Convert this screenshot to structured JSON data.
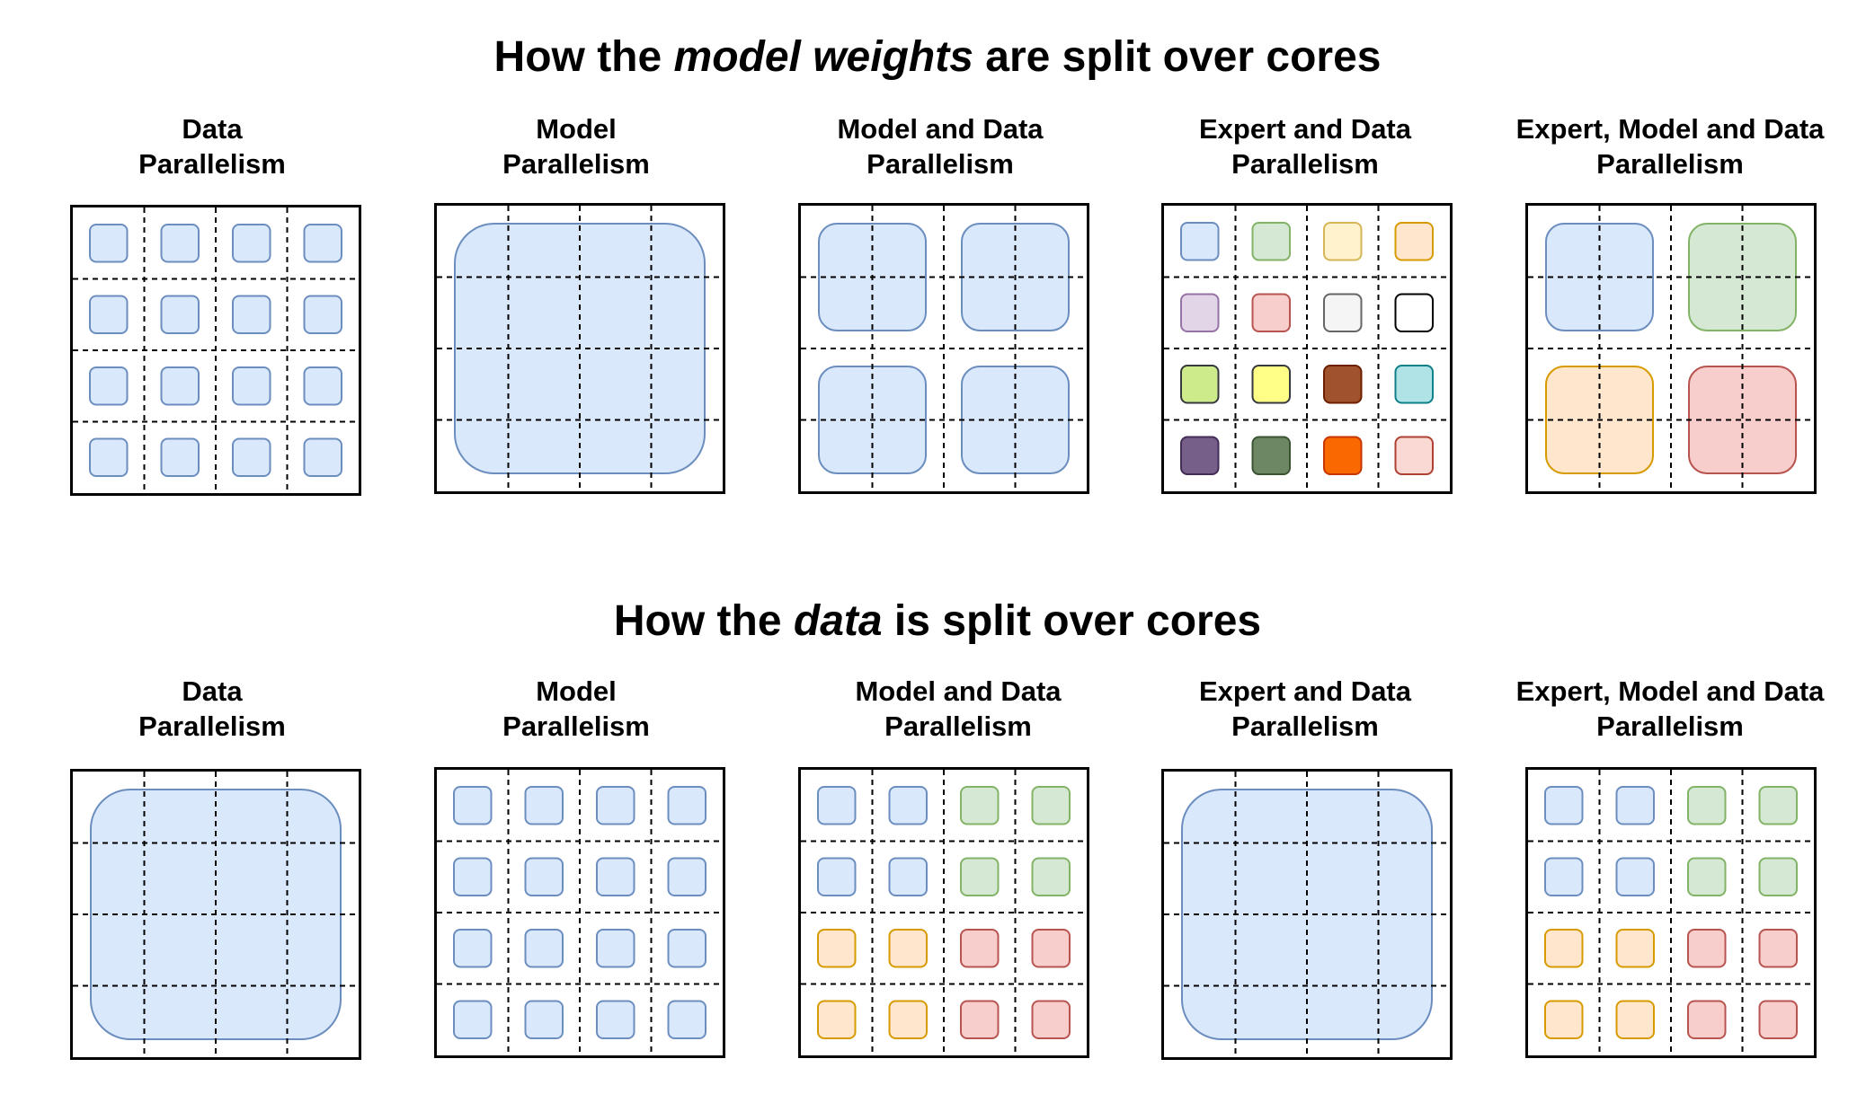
{
  "colors": {
    "blue": {
      "fill": "#dae8fc",
      "stroke": "#6c8ebf"
    },
    "green": {
      "fill": "#d5e8d4",
      "stroke": "#82b366"
    },
    "yellow_light": {
      "fill": "#fff2cc",
      "stroke": "#d6b656"
    },
    "orange": {
      "fill": "#ffe6cc",
      "stroke": "#d79b00"
    },
    "purple": {
      "fill": "#e1d5e7",
      "stroke": "#9673a6"
    },
    "red": {
      "fill": "#f8cecc",
      "stroke": "#b85450"
    },
    "gray": {
      "fill": "#f5f5f5",
      "stroke": "#666666"
    },
    "white": {
      "fill": "#ffffff",
      "stroke": "#000000"
    },
    "lime": {
      "fill": "#cdeb8b",
      "stroke": "#36393d"
    },
    "yellow": {
      "fill": "#ffff88",
      "stroke": "#36393d"
    },
    "brown": {
      "fill": "#a0522d",
      "stroke": "#6d1f00"
    },
    "teal": {
      "fill": "#b0e3e6",
      "stroke": "#0e8088"
    },
    "dark_purple": {
      "fill": "#76608a",
      "stroke": "#432d57"
    },
    "dark_green": {
      "fill": "#6d8764",
      "stroke": "#3a5431"
    },
    "bright_orange": {
      "fill": "#fa6800",
      "stroke": "#c73500"
    },
    "pink": {
      "fill": "#fad9d5",
      "stroke": "#ae4132"
    }
  },
  "sections": [
    {
      "title_before": "How the ",
      "title_em": "model weights",
      "title_after": " are split over cores",
      "panels": [
        {
          "label_line1": "Data",
          "label_line2": "Parallelism",
          "blocks": [
            {
              "r": 0,
              "c": 0,
              "w": 1,
              "h": 1,
              "color": "blue"
            },
            {
              "r": 0,
              "c": 1,
              "w": 1,
              "h": 1,
              "color": "blue"
            },
            {
              "r": 0,
              "c": 2,
              "w": 1,
              "h": 1,
              "color": "blue"
            },
            {
              "r": 0,
              "c": 3,
              "w": 1,
              "h": 1,
              "color": "blue"
            },
            {
              "r": 1,
              "c": 0,
              "w": 1,
              "h": 1,
              "color": "blue"
            },
            {
              "r": 1,
              "c": 1,
              "w": 1,
              "h": 1,
              "color": "blue"
            },
            {
              "r": 1,
              "c": 2,
              "w": 1,
              "h": 1,
              "color": "blue"
            },
            {
              "r": 1,
              "c": 3,
              "w": 1,
              "h": 1,
              "color": "blue"
            },
            {
              "r": 2,
              "c": 0,
              "w": 1,
              "h": 1,
              "color": "blue"
            },
            {
              "r": 2,
              "c": 1,
              "w": 1,
              "h": 1,
              "color": "blue"
            },
            {
              "r": 2,
              "c": 2,
              "w": 1,
              "h": 1,
              "color": "blue"
            },
            {
              "r": 2,
              "c": 3,
              "w": 1,
              "h": 1,
              "color": "blue"
            },
            {
              "r": 3,
              "c": 0,
              "w": 1,
              "h": 1,
              "color": "blue"
            },
            {
              "r": 3,
              "c": 1,
              "w": 1,
              "h": 1,
              "color": "blue"
            },
            {
              "r": 3,
              "c": 2,
              "w": 1,
              "h": 1,
              "color": "blue"
            },
            {
              "r": 3,
              "c": 3,
              "w": 1,
              "h": 1,
              "color": "blue"
            }
          ]
        },
        {
          "label_line1": "Model",
          "label_line2": "Parallelism",
          "blocks": [
            {
              "r": 0,
              "c": 0,
              "w": 4,
              "h": 4,
              "color": "blue"
            }
          ]
        },
        {
          "label_line1": "Model and Data",
          "label_line2": "Parallelism",
          "blocks": [
            {
              "r": 0,
              "c": 0,
              "w": 2,
              "h": 2,
              "color": "blue"
            },
            {
              "r": 0,
              "c": 2,
              "w": 2,
              "h": 2,
              "color": "blue"
            },
            {
              "r": 2,
              "c": 0,
              "w": 2,
              "h": 2,
              "color": "blue"
            },
            {
              "r": 2,
              "c": 2,
              "w": 2,
              "h": 2,
              "color": "blue"
            }
          ]
        },
        {
          "label_line1": "Expert and Data",
          "label_line2": "Parallelism",
          "blocks": [
            {
              "r": 0,
              "c": 0,
              "w": 1,
              "h": 1,
              "color": "blue"
            },
            {
              "r": 0,
              "c": 1,
              "w": 1,
              "h": 1,
              "color": "green"
            },
            {
              "r": 0,
              "c": 2,
              "w": 1,
              "h": 1,
              "color": "yellow_light"
            },
            {
              "r": 0,
              "c": 3,
              "w": 1,
              "h": 1,
              "color": "orange"
            },
            {
              "r": 1,
              "c": 0,
              "w": 1,
              "h": 1,
              "color": "purple"
            },
            {
              "r": 1,
              "c": 1,
              "w": 1,
              "h": 1,
              "color": "red"
            },
            {
              "r": 1,
              "c": 2,
              "w": 1,
              "h": 1,
              "color": "gray"
            },
            {
              "r": 1,
              "c": 3,
              "w": 1,
              "h": 1,
              "color": "white"
            },
            {
              "r": 2,
              "c": 0,
              "w": 1,
              "h": 1,
              "color": "lime"
            },
            {
              "r": 2,
              "c": 1,
              "w": 1,
              "h": 1,
              "color": "yellow"
            },
            {
              "r": 2,
              "c": 2,
              "w": 1,
              "h": 1,
              "color": "brown"
            },
            {
              "r": 2,
              "c": 3,
              "w": 1,
              "h": 1,
              "color": "teal"
            },
            {
              "r": 3,
              "c": 0,
              "w": 1,
              "h": 1,
              "color": "dark_purple"
            },
            {
              "r": 3,
              "c": 1,
              "w": 1,
              "h": 1,
              "color": "dark_green"
            },
            {
              "r": 3,
              "c": 2,
              "w": 1,
              "h": 1,
              "color": "bright_orange"
            },
            {
              "r": 3,
              "c": 3,
              "w": 1,
              "h": 1,
              "color": "pink"
            }
          ]
        },
        {
          "label_line1": "Expert, Model and Data",
          "label_line2": "Parallelism",
          "blocks": [
            {
              "r": 0,
              "c": 0,
              "w": 2,
              "h": 2,
              "color": "blue"
            },
            {
              "r": 0,
              "c": 2,
              "w": 2,
              "h": 2,
              "color": "green"
            },
            {
              "r": 2,
              "c": 0,
              "w": 2,
              "h": 2,
              "color": "orange"
            },
            {
              "r": 2,
              "c": 2,
              "w": 2,
              "h": 2,
              "color": "red"
            }
          ]
        }
      ]
    },
    {
      "title_before": "How the ",
      "title_em": "data",
      "title_after": " is split over cores",
      "panels": [
        {
          "label_line1": "Data",
          "label_line2": "Parallelism",
          "blocks": [
            {
              "r": 0,
              "c": 0,
              "w": 4,
              "h": 4,
              "color": "blue"
            }
          ]
        },
        {
          "label_line1": "Model",
          "label_line2": "Parallelism",
          "blocks": [
            {
              "r": 0,
              "c": 0,
              "w": 1,
              "h": 1,
              "color": "blue"
            },
            {
              "r": 0,
              "c": 1,
              "w": 1,
              "h": 1,
              "color": "blue"
            },
            {
              "r": 0,
              "c": 2,
              "w": 1,
              "h": 1,
              "color": "blue"
            },
            {
              "r": 0,
              "c": 3,
              "w": 1,
              "h": 1,
              "color": "blue"
            },
            {
              "r": 1,
              "c": 0,
              "w": 1,
              "h": 1,
              "color": "blue"
            },
            {
              "r": 1,
              "c": 1,
              "w": 1,
              "h": 1,
              "color": "blue"
            },
            {
              "r": 1,
              "c": 2,
              "w": 1,
              "h": 1,
              "color": "blue"
            },
            {
              "r": 1,
              "c": 3,
              "w": 1,
              "h": 1,
              "color": "blue"
            },
            {
              "r": 2,
              "c": 0,
              "w": 1,
              "h": 1,
              "color": "blue"
            },
            {
              "r": 2,
              "c": 1,
              "w": 1,
              "h": 1,
              "color": "blue"
            },
            {
              "r": 2,
              "c": 2,
              "w": 1,
              "h": 1,
              "color": "blue"
            },
            {
              "r": 2,
              "c": 3,
              "w": 1,
              "h": 1,
              "color": "blue"
            },
            {
              "r": 3,
              "c": 0,
              "w": 1,
              "h": 1,
              "color": "blue"
            },
            {
              "r": 3,
              "c": 1,
              "w": 1,
              "h": 1,
              "color": "blue"
            },
            {
              "r": 3,
              "c": 2,
              "w": 1,
              "h": 1,
              "color": "blue"
            },
            {
              "r": 3,
              "c": 3,
              "w": 1,
              "h": 1,
              "color": "blue"
            }
          ]
        },
        {
          "label_line1": "Model and Data",
          "label_line2": "Parallelism",
          "blocks": [
            {
              "r": 0,
              "c": 0,
              "w": 1,
              "h": 1,
              "color": "blue"
            },
            {
              "r": 0,
              "c": 1,
              "w": 1,
              "h": 1,
              "color": "blue"
            },
            {
              "r": 0,
              "c": 2,
              "w": 1,
              "h": 1,
              "color": "green"
            },
            {
              "r": 0,
              "c": 3,
              "w": 1,
              "h": 1,
              "color": "green"
            },
            {
              "r": 1,
              "c": 0,
              "w": 1,
              "h": 1,
              "color": "blue"
            },
            {
              "r": 1,
              "c": 1,
              "w": 1,
              "h": 1,
              "color": "blue"
            },
            {
              "r": 1,
              "c": 2,
              "w": 1,
              "h": 1,
              "color": "green"
            },
            {
              "r": 1,
              "c": 3,
              "w": 1,
              "h": 1,
              "color": "green"
            },
            {
              "r": 2,
              "c": 0,
              "w": 1,
              "h": 1,
              "color": "orange"
            },
            {
              "r": 2,
              "c": 1,
              "w": 1,
              "h": 1,
              "color": "orange"
            },
            {
              "r": 2,
              "c": 2,
              "w": 1,
              "h": 1,
              "color": "red"
            },
            {
              "r": 2,
              "c": 3,
              "w": 1,
              "h": 1,
              "color": "red"
            },
            {
              "r": 3,
              "c": 0,
              "w": 1,
              "h": 1,
              "color": "orange"
            },
            {
              "r": 3,
              "c": 1,
              "w": 1,
              "h": 1,
              "color": "orange"
            },
            {
              "r": 3,
              "c": 2,
              "w": 1,
              "h": 1,
              "color": "red"
            },
            {
              "r": 3,
              "c": 3,
              "w": 1,
              "h": 1,
              "color": "red"
            }
          ]
        },
        {
          "label_line1": "Expert and Data",
          "label_line2": "Parallelism",
          "blocks": [
            {
              "r": 0,
              "c": 0,
              "w": 4,
              "h": 4,
              "color": "blue"
            }
          ]
        },
        {
          "label_line1": "Expert, Model and Data",
          "label_line2": "Parallelism",
          "blocks": [
            {
              "r": 0,
              "c": 0,
              "w": 1,
              "h": 1,
              "color": "blue"
            },
            {
              "r": 0,
              "c": 1,
              "w": 1,
              "h": 1,
              "color": "blue"
            },
            {
              "r": 0,
              "c": 2,
              "w": 1,
              "h": 1,
              "color": "green"
            },
            {
              "r": 0,
              "c": 3,
              "w": 1,
              "h": 1,
              "color": "green"
            },
            {
              "r": 1,
              "c": 0,
              "w": 1,
              "h": 1,
              "color": "blue"
            },
            {
              "r": 1,
              "c": 1,
              "w": 1,
              "h": 1,
              "color": "blue"
            },
            {
              "r": 1,
              "c": 2,
              "w": 1,
              "h": 1,
              "color": "green"
            },
            {
              "r": 1,
              "c": 3,
              "w": 1,
              "h": 1,
              "color": "green"
            },
            {
              "r": 2,
              "c": 0,
              "w": 1,
              "h": 1,
              "color": "orange"
            },
            {
              "r": 2,
              "c": 1,
              "w": 1,
              "h": 1,
              "color": "orange"
            },
            {
              "r": 2,
              "c": 2,
              "w": 1,
              "h": 1,
              "color": "red"
            },
            {
              "r": 2,
              "c": 3,
              "w": 1,
              "h": 1,
              "color": "red"
            },
            {
              "r": 3,
              "c": 0,
              "w": 1,
              "h": 1,
              "color": "orange"
            },
            {
              "r": 3,
              "c": 1,
              "w": 1,
              "h": 1,
              "color": "orange"
            },
            {
              "r": 3,
              "c": 2,
              "w": 1,
              "h": 1,
              "color": "red"
            },
            {
              "r": 3,
              "c": 3,
              "w": 1,
              "h": 1,
              "color": "red"
            }
          ]
        }
      ]
    }
  ]
}
